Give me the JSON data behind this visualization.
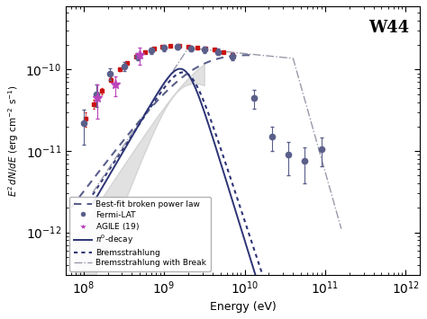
{
  "title": "W44",
  "xlabel": "Energy (eV)",
  "ylabel": "$E^2\\ dN/dE\\ (\\mathrm{erg\\ cm^{-2}\\ s^{-1}})$",
  "xlim": [
    60000000.0,
    1500000000000.0
  ],
  "ylim": [
    3e-13,
    6e-10
  ],
  "fermi_color": "#5a5f8a",
  "red_color": "#cc1111",
  "agile_color": "#bb44bb",
  "pi0_color": "#2d3475",
  "brem_color": "#2d3475",
  "brembreak_color": "#9999aa",
  "bpl_color": "#5a5f8a",
  "band_color": "#aaaaaa",
  "background_color": "#ffffff",
  "legend_fontsize": 6.5
}
